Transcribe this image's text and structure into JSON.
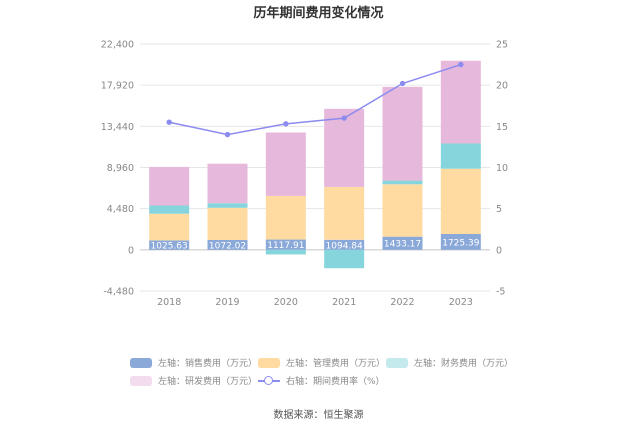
{
  "chart_data": {
    "type": "bar",
    "title": "历年期间费用变化情况",
    "categories": [
      "2018",
      "2019",
      "2020",
      "2021",
      "2022",
      "2023"
    ],
    "left_axis": {
      "ticks": [
        "-4,480",
        "0",
        "4,480",
        "8,960",
        "13,440",
        "17,920",
        "22,400"
      ],
      "ylim": [
        -4480,
        22400
      ]
    },
    "right_axis": {
      "ticks": [
        "-5",
        "0",
        "5",
        "10",
        "15",
        "20",
        "25"
      ],
      "ylim": [
        -5,
        25
      ]
    },
    "series": [
      {
        "name": "左轴：销售费用（万元）",
        "type": "bar",
        "color": "#8aa9d9",
        "values": [
          1025.63,
          1072.02,
          1117.91,
          1094.84,
          1433.17,
          1725.39
        ],
        "labels": [
          "1025.63",
          "1072.02",
          "1117.91",
          "1094.84",
          "1433.17",
          "1725.39"
        ]
      },
      {
        "name": "左轴：管理费用（万元）",
        "type": "bar",
        "color": "#ffdba1",
        "values": [
          2900,
          3500,
          4750,
          5750,
          5700,
          7100
        ]
      },
      {
        "name": "左轴：财务费用（万元）",
        "type": "bar",
        "color": "#86d5dc",
        "values": [
          900,
          500,
          -500,
          -2000,
          400,
          2750
        ]
      },
      {
        "name": "左轴：研发费用（万元）",
        "type": "bar",
        "color": "#e6b8db",
        "values": [
          4200,
          4300,
          6900,
          8500,
          10200,
          9000
        ]
      },
      {
        "name": "右轴：期间费用率（%）",
        "type": "line",
        "color": "#8b8bf0",
        "values": [
          15.5,
          14.0,
          15.3,
          16.0,
          20.2,
          22.5
        ]
      }
    ],
    "grid": true,
    "legend_position": "bottom"
  },
  "source_text": "数据来源：恒生聚源"
}
